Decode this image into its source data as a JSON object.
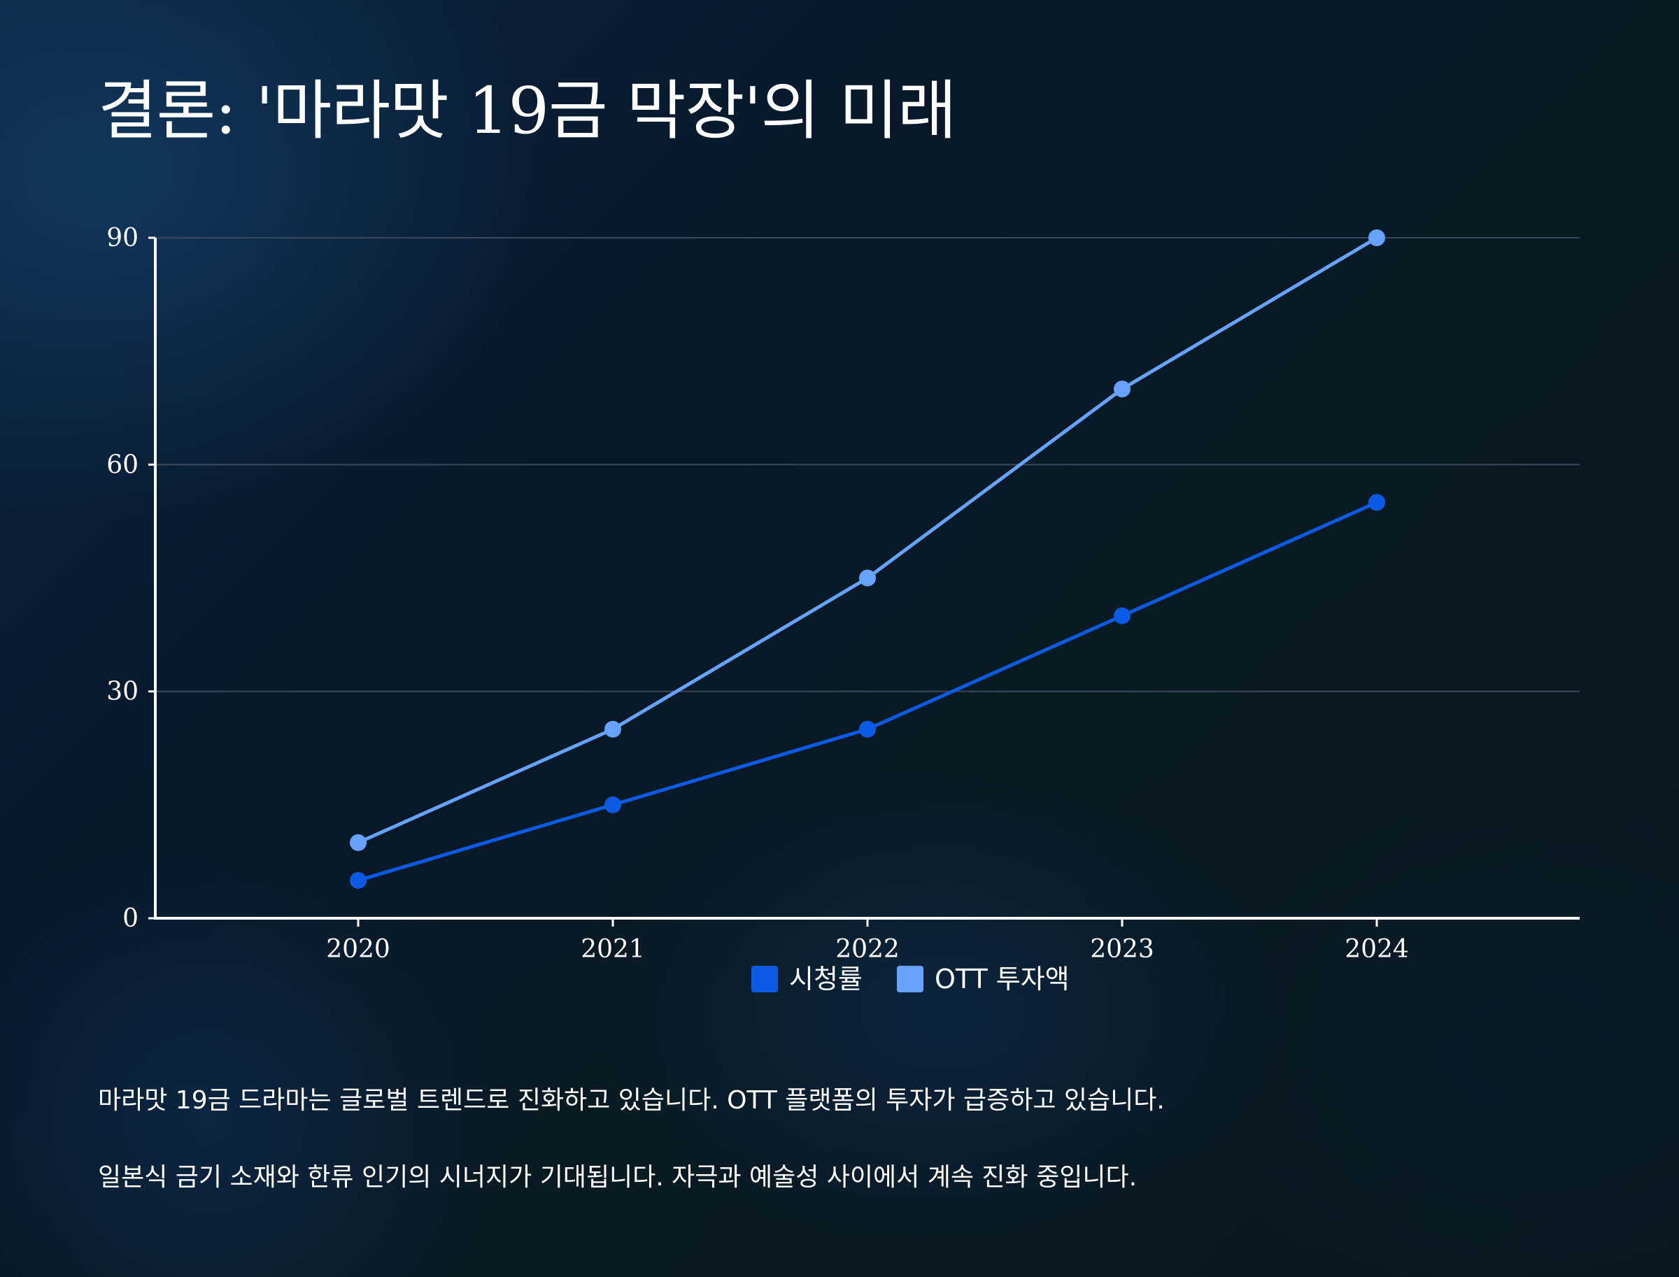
{
  "title": "결론: '마라맛 19금 막장'의 미래",
  "chart_data": {
    "type": "line",
    "x": [
      "2020",
      "2021",
      "2022",
      "2023",
      "2024"
    ],
    "ylim": [
      0,
      90
    ],
    "yticks": [
      "0",
      "30",
      "60",
      "90"
    ],
    "grid": true,
    "legend_position": "bottom-center",
    "series": [
      {
        "name": "시청률",
        "values": [
          5,
          15,
          25,
          40,
          55
        ],
        "color": "#0b5be6"
      },
      {
        "name": "OTT 투자액",
        "values": [
          10,
          25,
          45,
          70,
          90
        ],
        "color": "#66a3ff"
      }
    ]
  },
  "paragraphs": [
    "마라맛 19금 드라마는 글로벌 트렌드로 진화하고 있습니다. OTT 플랫폼의 투자가 급증하고 있습니다.",
    "일본식 금기 소재와 한류 인기의 시너지가 기대됩니다. 자극과 예술성 사이에서 계속 진화 중입니다."
  ]
}
